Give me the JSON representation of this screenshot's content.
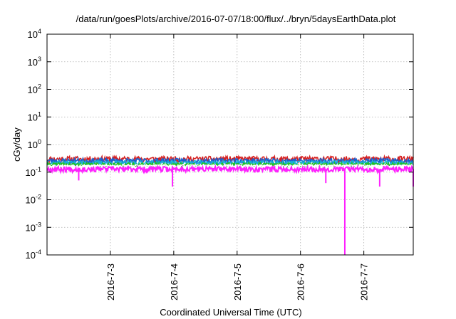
{
  "chart_data": {
    "type": "line",
    "title": "/data/run/goesPlots/archive/2016-07-07/18:00/flux/../bryn/5daysEarthData.plot",
    "xlabel": "Coordinated Universal Time (UTC)",
    "ylabel": "cGy/day",
    "yscale": "log",
    "ylim": [
      0.0001,
      10000
    ],
    "xlim": [
      0.0,
      5.78
    ],
    "y_ticks": [
      {
        "base": "10",
        "exp": "-4"
      },
      {
        "base": "10",
        "exp": "-3"
      },
      {
        "base": "10",
        "exp": "-2"
      },
      {
        "base": "10",
        "exp": "-1"
      },
      {
        "base": "10",
        "exp": "0"
      },
      {
        "base": "10",
        "exp": "1"
      },
      {
        "base": "10",
        "exp": "2"
      },
      {
        "base": "10",
        "exp": "3"
      },
      {
        "base": "10",
        "exp": "4"
      }
    ],
    "x_ticks": [
      {
        "x": 1.0,
        "label": "2016-7-3"
      },
      {
        "x": 2.0,
        "label": "2016-7-4"
      },
      {
        "x": 3.0,
        "label": "2016-7-5"
      },
      {
        "x": 4.0,
        "label": "2016-7-6"
      },
      {
        "x": 5.0,
        "label": "2016-7-7"
      }
    ],
    "grid": true,
    "series": [
      {
        "color": "#d62020",
        "baseline": 0.3,
        "jitter": 0.25,
        "seed": 11
      },
      {
        "color": "#1a5fd0",
        "baseline": 0.26,
        "jitter": 0.22,
        "seed": 23
      },
      {
        "color": "#18b0d8",
        "baseline": 0.22,
        "jitter": 0.18,
        "seed": 37
      },
      {
        "color": "#20c020",
        "baseline": 0.19,
        "jitter": 0.14,
        "seed": 41
      },
      {
        "color": "#ffffff",
        "baseline": 0.17,
        "jitter": 0.1,
        "seed": 53
      },
      {
        "color": "#ff20ff",
        "baseline": 0.13,
        "jitter": 0.22,
        "seed": 67
      }
    ],
    "dips": [
      {
        "x": 1.98,
        "y": 0.03
      },
      {
        "x": 4.7,
        "y": 0.0001
      },
      {
        "x": 4.4,
        "y": 0.04
      },
      {
        "x": 5.25,
        "y": 0.03
      },
      {
        "x": 5.78,
        "y": 0.03
      },
      {
        "x": 0.5,
        "y": 0.05
      }
    ]
  }
}
